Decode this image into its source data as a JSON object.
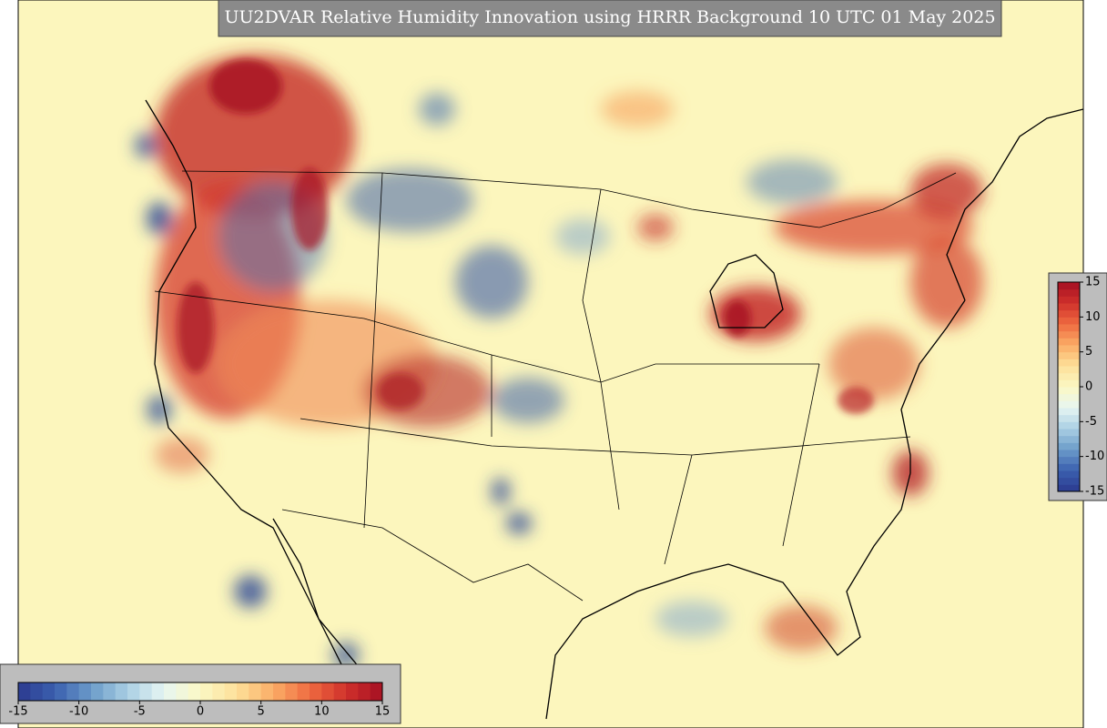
{
  "title": "UU2DVAR Relative Humidity Innovation using HRRR Background 10 UTC 01 May 2025",
  "colorbar_right": {
    "range": [
      -15,
      15
    ],
    "ticks": [
      -15,
      -10,
      -5,
      0,
      5,
      10,
      15
    ]
  },
  "colorbar_bottom": {
    "range": [
      -15,
      15
    ],
    "ticks": [
      -15,
      -10,
      -5,
      0,
      5,
      10,
      15
    ]
  },
  "colormap": [
    "#2b3a8f",
    "#3a5fae",
    "#6b9bc9",
    "#a9cfe3",
    "#e6f5f2",
    "#fbf8c4",
    "#fde09a",
    "#fbad66",
    "#ef6b41",
    "#d0312b",
    "#a50f22"
  ]
}
